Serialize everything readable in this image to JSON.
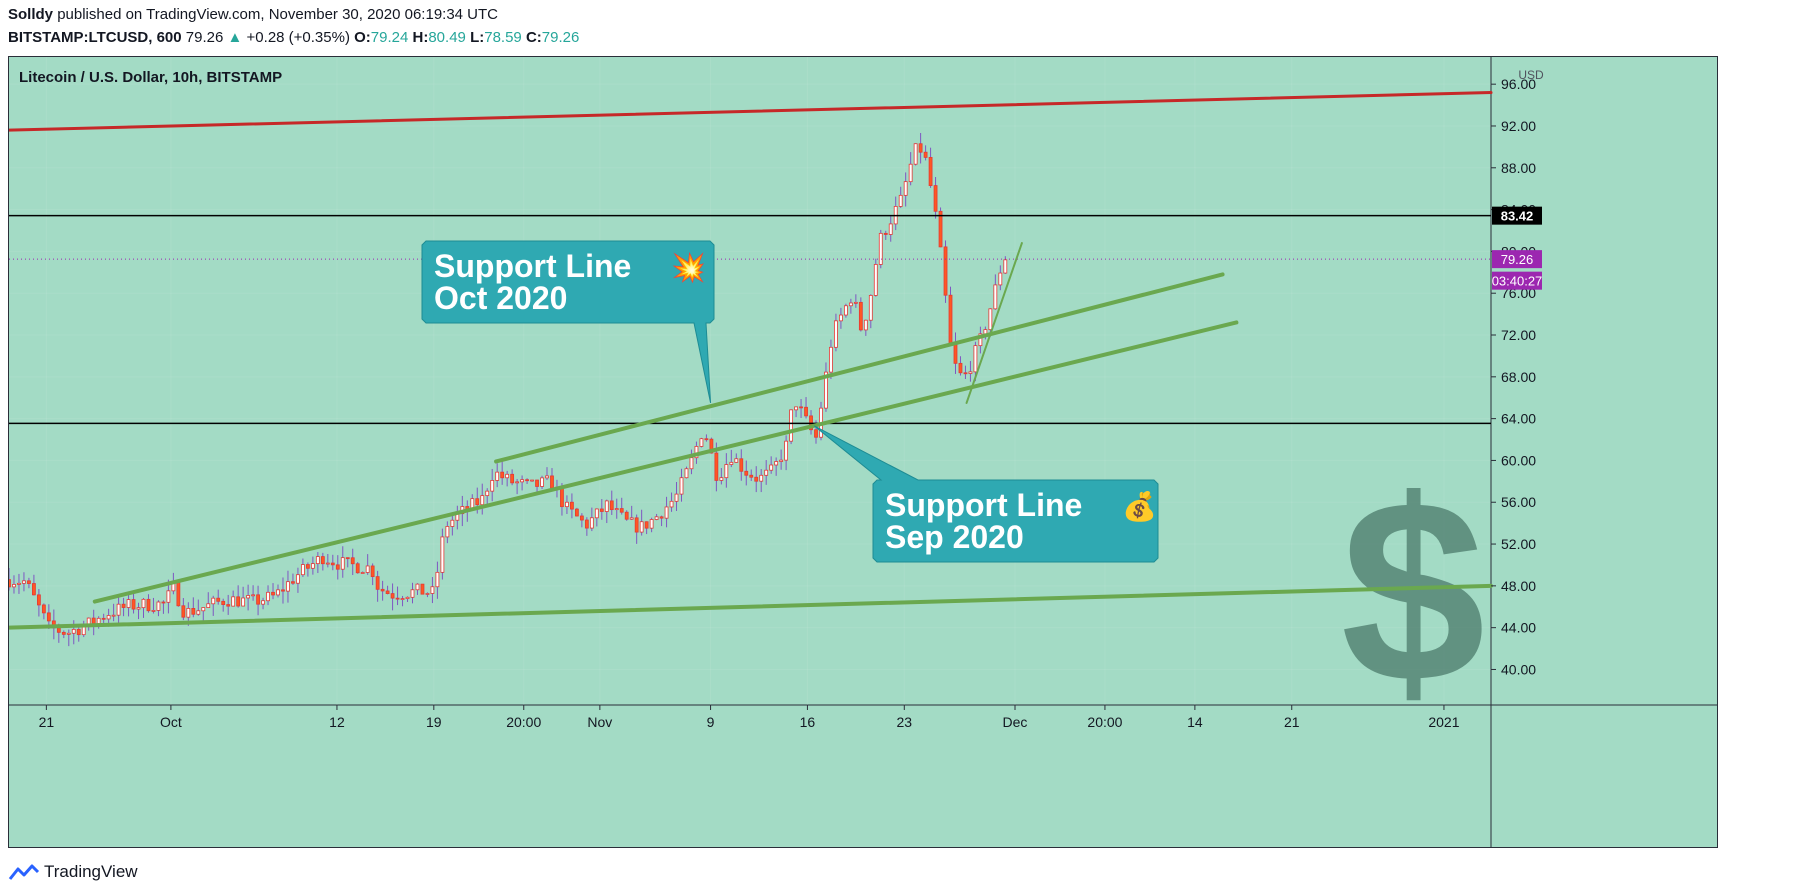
{
  "header": {
    "author": "Solldy",
    "published": "published on TradingView.com, November 30, 2020 06:19:34 UTC",
    "symbol": "BITSTAMP:LTCUSD, 600",
    "last": "79.26",
    "change": "+0.28 (+0.35%)",
    "open_label": "O:",
    "open": "79.24",
    "high_label": "H:",
    "high": "80.49",
    "low_label": "L:",
    "low": "78.59",
    "close_label": "C:",
    "close": "79.26"
  },
  "footer": {
    "brand": "TradingView"
  },
  "colors": {
    "background": "#a3dbc5",
    "candle_up": "#ffffff",
    "candle_down": "#ff5722",
    "candle_border": "#e53935",
    "wick": "#7e57c2",
    "resistance": "#c62828",
    "support": "#6aa84f",
    "level": "#000000",
    "callout": "#2fa9b2",
    "price_tag": "#9c27b0"
  },
  "chart_data": {
    "type": "candlestick",
    "title": "Litecoin / U.S. Dollar, 10h, BITSTAMP",
    "currency_label": "USD",
    "ylim": [
      36.6,
      98.6
    ],
    "y_ticks": [
      96,
      92,
      88,
      84,
      80,
      76,
      72,
      68,
      64,
      60,
      56,
      52,
      48,
      44,
      40
    ],
    "x_ticks": [
      {
        "label": "21",
        "t": 0
      },
      {
        "label": "Oct",
        "t": 9
      },
      {
        "label": "12",
        "t": 21
      },
      {
        "label": "19",
        "t": 28
      },
      {
        "label": "20:00",
        "t": 34.5
      },
      {
        "label": "Nov",
        "t": 40
      },
      {
        "label": "9",
        "t": 48
      },
      {
        "label": "16",
        "t": 55
      },
      {
        "label": "23",
        "t": 62
      },
      {
        "label": "Dec",
        "t": 70
      },
      {
        "label": "20:00",
        "t": 76.5
      },
      {
        "label": "14",
        "t": 83
      },
      {
        "label": "21",
        "t": 90
      },
      {
        "label": "2021",
        "t": 101
      }
    ],
    "t_range": [
      -2.7,
      104.4
    ],
    "series_path": [
      [
        -2.7,
        48.6
      ],
      [
        -1.5,
        48.4
      ],
      [
        0.2,
        44.0
      ],
      [
        1.5,
        43.5
      ],
      [
        3.0,
        44.3
      ],
      [
        4.5,
        45.4
      ],
      [
        6.0,
        46.1
      ],
      [
        8.5,
        46.3
      ],
      [
        9.2,
        47.8
      ],
      [
        10.0,
        45.4
      ],
      [
        11.5,
        46.0
      ],
      [
        13.0,
        46.7
      ],
      [
        15.0,
        46.5
      ],
      [
        16.5,
        47.0
      ],
      [
        18.0,
        48.9
      ],
      [
        20.0,
        50.8
      ],
      [
        21.0,
        50.2
      ],
      [
        22.0,
        50.0
      ],
      [
        23.5,
        49.7
      ],
      [
        24.0,
        47.8
      ],
      [
        25.0,
        47.2
      ],
      [
        27.0,
        47.5
      ],
      [
        28.0,
        47.3
      ],
      [
        28.8,
        53.7
      ],
      [
        30.0,
        55.0
      ],
      [
        31.5,
        56.3
      ],
      [
        32.3,
        58.9
      ],
      [
        33.5,
        58.0
      ],
      [
        35.0,
        57.5
      ],
      [
        36.5,
        58.0
      ],
      [
        37.5,
        55.5
      ],
      [
        39.0,
        53.8
      ],
      [
        40.5,
        55.7
      ],
      [
        42.0,
        54.0
      ],
      [
        43.0,
        53.6
      ],
      [
        44.0,
        54.5
      ],
      [
        45.5,
        56.5
      ],
      [
        46.5,
        59.5
      ],
      [
        47.5,
        63.2
      ],
      [
        48.5,
        58.4
      ],
      [
        49.5,
        60.5
      ],
      [
        50.5,
        59.0
      ],
      [
        51.5,
        58.2
      ],
      [
        52.5,
        59.0
      ],
      [
        53.5,
        61.5
      ],
      [
        54.0,
        66.0
      ],
      [
        55.0,
        63.5
      ],
      [
        55.6,
        62.0
      ],
      [
        56.2,
        67.0
      ],
      [
        56.8,
        72.0
      ],
      [
        57.5,
        74.0
      ],
      [
        58.3,
        76.0
      ],
      [
        58.8,
        72.5
      ],
      [
        59.4,
        74.5
      ],
      [
        60.2,
        81.0
      ],
      [
        61.0,
        83.0
      ],
      [
        61.8,
        85.0
      ],
      [
        62.4,
        88.0
      ],
      [
        63.0,
        90.3
      ],
      [
        63.6,
        88.5
      ],
      [
        64.2,
        84.0
      ],
      [
        64.8,
        78.0
      ],
      [
        65.3,
        71.0
      ],
      [
        65.8,
        68.5
      ],
      [
        66.3,
        67.8
      ],
      [
        66.8,
        69.2
      ],
      [
        67.5,
        71.5
      ],
      [
        68.0,
        73.5
      ],
      [
        68.6,
        76.5
      ],
      [
        69.2,
        79.5
      ],
      [
        69.6,
        79.3
      ]
    ],
    "levels": [
      {
        "name": "83.42",
        "value": 83.42,
        "t0": -2.7,
        "t1": 104.4
      },
      {
        "name": "",
        "value": 63.55,
        "t0": -2.7,
        "t1": 104.4
      }
    ],
    "trendlines": [
      {
        "kind": "resistance",
        "t0": -2.7,
        "y0": 91.6,
        "t1": 104.4,
        "y1": 95.2
      },
      {
        "kind": "support",
        "t0": 32.5,
        "y0": 59.9,
        "t1": 85.0,
        "y1": 77.8
      },
      {
        "kind": "support",
        "t0": 3.5,
        "y0": 46.5,
        "t1": 86.0,
        "y1": 73.2
      },
      {
        "kind": "support",
        "t0": -2.7,
        "y0": 44.0,
        "t1": 104.4,
        "y1": 48.0
      },
      {
        "kind": "support",
        "t0": 66.5,
        "y0": 65.5,
        "t1": 70.5,
        "y1": 80.8
      }
    ],
    "price_tags": [
      {
        "label": "83.42",
        "value": 83.42,
        "style": "level"
      },
      {
        "label": "79.26",
        "value": 79.26,
        "style": "last"
      },
      {
        "label": "03:40:27",
        "value": 77.2,
        "style": "countdown"
      }
    ],
    "annotations": [
      {
        "line1": "Support Line",
        "line2": "Oct 2020",
        "emoji": "💥",
        "tip_t": 48.0,
        "tip_y": 65.5,
        "box": "upper-middle"
      },
      {
        "line1": "Support Line",
        "line2": "Sep 2020",
        "emoji": "💰",
        "tip_t": 55.5,
        "tip_y": 63.3,
        "box": "lower-middle"
      }
    ],
    "watermark": "$"
  }
}
